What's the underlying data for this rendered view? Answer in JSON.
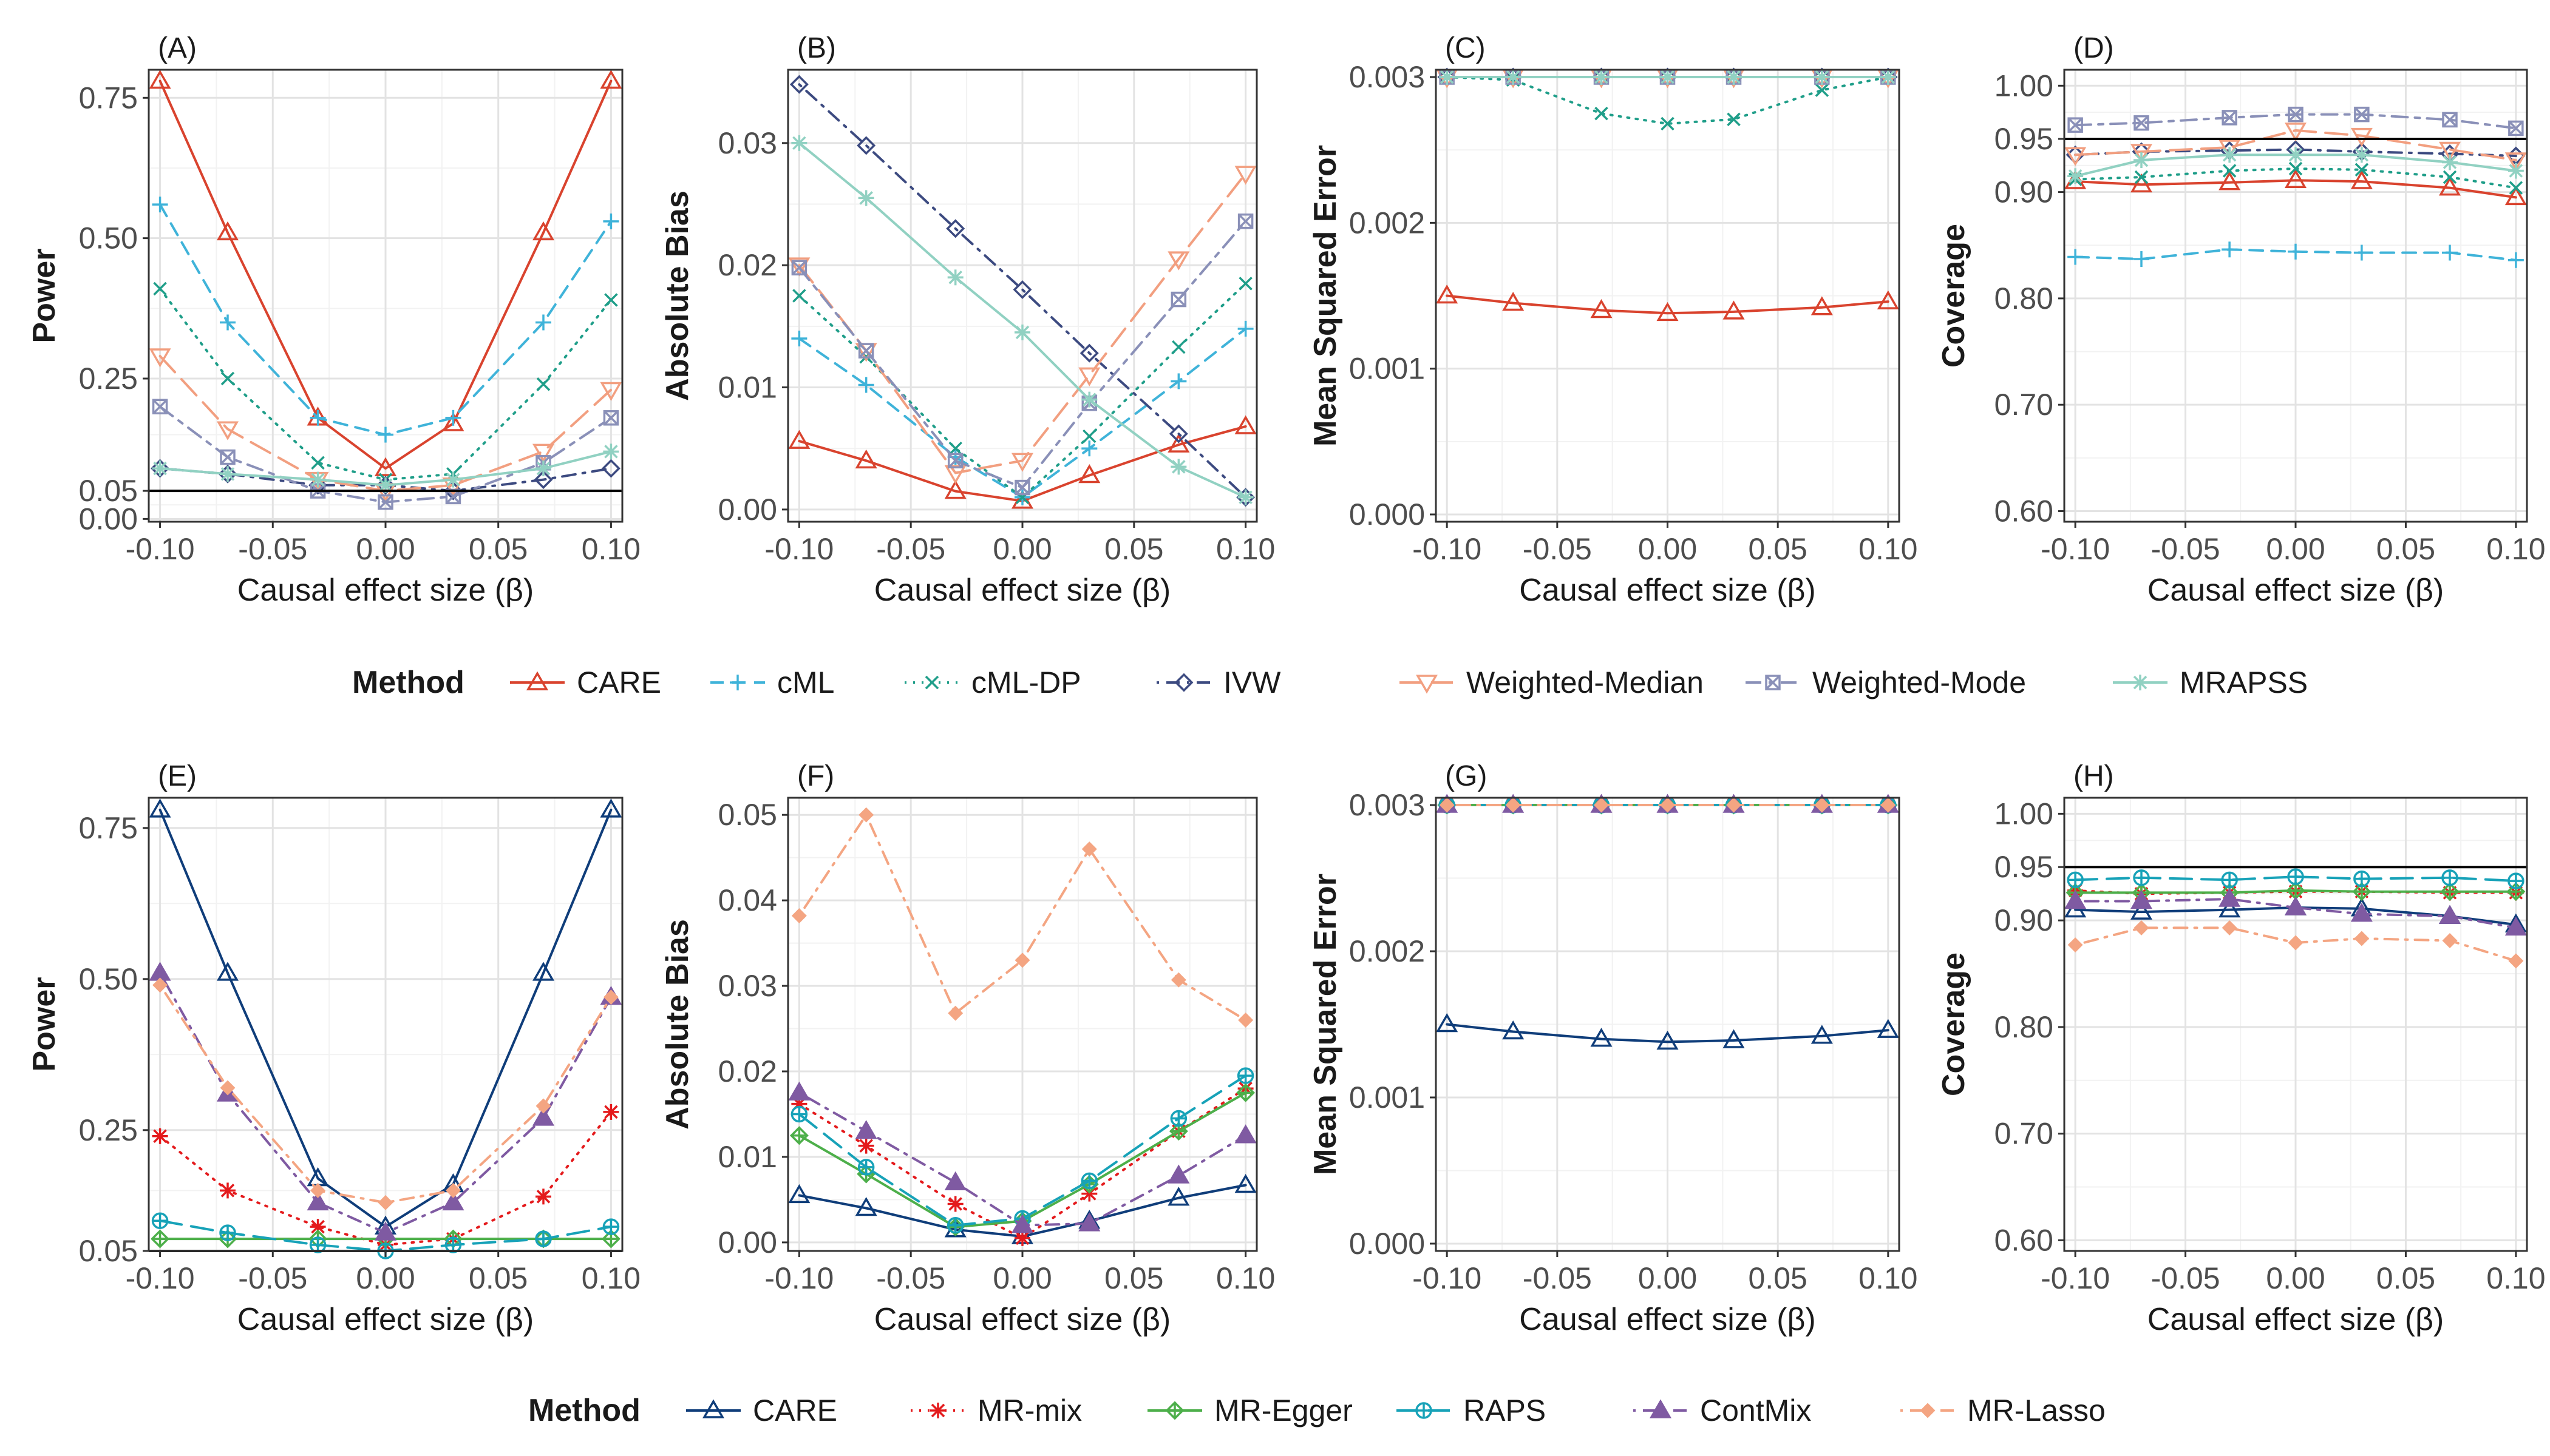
{
  "x_axis_ticks": [
    -0.1,
    -0.05,
    0.0,
    0.05,
    0.1
  ],
  "legends": [
    {
      "title": "Method",
      "items": [
        "CARE",
        "cML",
        "cML-DP",
        "IVW",
        "Weighted-Median",
        "Weighted-Mode",
        "MRAPSS"
      ]
    },
    {
      "title": "Method",
      "items": [
        "CARE",
        "MR-mix",
        "MR-Egger",
        "RAPS",
        "ContMix",
        "MR-Lasso"
      ]
    }
  ],
  "method_styles": {
    "CARE": {
      "color": "#d9432e",
      "shape": "triangle",
      "dash": "solid"
    },
    "cML": {
      "color": "#3fb3d9",
      "shape": "plus",
      "dash": "dashed"
    },
    "cML-DP": {
      "color": "#1f9e89",
      "shape": "x",
      "dash": "dotted"
    },
    "IVW": {
      "color": "#3c4a80",
      "shape": "diamond",
      "dash": "dotdash"
    },
    "Weighted-Median": {
      "color": "#f29f80",
      "shape": "tri-down",
      "dash": "longdash"
    },
    "Weighted-Mode": {
      "color": "#8a90b8",
      "shape": "square-x",
      "dash": "twodash"
    },
    "MRAPSS": {
      "color": "#91d1c2",
      "shape": "asterisk",
      "dash": "solid"
    },
    "CARE2": {
      "color": "#0f3d7a",
      "shape": "triangle",
      "dash": "solid"
    },
    "MR-mix": {
      "color": "#e41a1c",
      "shape": "asterisk",
      "dash": "dotted"
    },
    "MR-Egger": {
      "color": "#4daf4a",
      "shape": "diamond-plus",
      "dash": "solid"
    },
    "RAPS": {
      "color": "#17a2b8",
      "shape": "circle-plus",
      "dash": "longdash"
    },
    "ContMix": {
      "color": "#7f5aa2",
      "shape": "filled-triangle",
      "dash": "dotdash"
    },
    "MR-Lasso": {
      "color": "#f4a582",
      "shape": "filled-diamond",
      "dash": "dotdash"
    }
  },
  "chart_data": [
    {
      "type": "line",
      "panel": "(A)",
      "xlabel": "Causal effect size (β)",
      "ylabel": "Power",
      "x": [
        -0.1,
        -0.07,
        -0.03,
        0.0,
        0.03,
        0.07,
        0.1
      ],
      "ylim": [
        -0.005,
        0.8
      ],
      "yticks": [
        0.0,
        0.05,
        0.25,
        0.5,
        0.75
      ],
      "ytick_labels": [
        "0.00",
        "0.05",
        "0.25",
        "0.50",
        "0.75"
      ],
      "hline": 0.05,
      "series": [
        {
          "name": "CARE",
          "values": [
            0.78,
            0.51,
            0.18,
            0.09,
            0.17,
            0.51,
            0.78
          ]
        },
        {
          "name": "cML",
          "values": [
            0.56,
            0.35,
            0.18,
            0.15,
            0.18,
            0.35,
            0.53
          ]
        },
        {
          "name": "cML-DP",
          "values": [
            0.41,
            0.25,
            0.1,
            0.07,
            0.08,
            0.24,
            0.39
          ]
        },
        {
          "name": "IVW",
          "values": [
            0.09,
            0.08,
            0.06,
            0.06,
            0.05,
            0.07,
            0.09
          ]
        },
        {
          "name": "Weighted-Median",
          "values": [
            0.29,
            0.16,
            0.07,
            0.05,
            0.06,
            0.12,
            0.23
          ]
        },
        {
          "name": "Weighted-Mode",
          "values": [
            0.2,
            0.11,
            0.05,
            0.03,
            0.04,
            0.1,
            0.18
          ]
        },
        {
          "name": "MRAPSS",
          "values": [
            0.09,
            0.08,
            0.07,
            0.06,
            0.07,
            0.09,
            0.12
          ]
        }
      ]
    },
    {
      "type": "line",
      "panel": "(B)",
      "xlabel": "Causal effect size (β)",
      "ylabel": "Absolute Bias",
      "x": [
        -0.1,
        -0.07,
        -0.03,
        0.0,
        0.03,
        0.07,
        0.1
      ],
      "ylim": [
        -0.001,
        0.036
      ],
      "yticks": [
        0.0,
        0.01,
        0.02,
        0.03
      ],
      "ytick_labels": [
        "0.00",
        "0.01",
        "0.02",
        "0.03"
      ],
      "series": [
        {
          "name": "CARE",
          "values": [
            0.0056,
            0.004,
            0.0015,
            0.0007,
            0.0028,
            0.0053,
            0.0068
          ]
        },
        {
          "name": "cML",
          "values": [
            0.014,
            0.0102,
            0.0043,
            0.001,
            0.005,
            0.0105,
            0.0148
          ]
        },
        {
          "name": "cML-DP",
          "values": [
            0.0175,
            0.0125,
            0.005,
            0.001,
            0.006,
            0.0133,
            0.0185
          ]
        },
        {
          "name": "IVW",
          "values": [
            0.0348,
            0.0298,
            0.023,
            0.018,
            0.0128,
            0.0062,
            0.001
          ]
        },
        {
          "name": "Weighted-Median",
          "values": [
            0.02,
            0.013,
            0.003,
            0.004,
            0.011,
            0.0205,
            0.0275
          ]
        },
        {
          "name": "Weighted-Mode",
          "values": [
            0.0198,
            0.013,
            0.004,
            0.0018,
            0.0087,
            0.0172,
            0.0236
          ]
        },
        {
          "name": "MRAPSS",
          "values": [
            0.03,
            0.0255,
            0.019,
            0.0145,
            0.009,
            0.0035,
            0.001
          ]
        }
      ]
    },
    {
      "type": "line",
      "panel": "(C)",
      "xlabel": "Causal effect size (β)",
      "ylabel": "Mean Squared Error",
      "x": [
        -0.1,
        -0.07,
        -0.03,
        0.0,
        0.03,
        0.07,
        0.1
      ],
      "ylim": [
        -5e-05,
        0.00305
      ],
      "yticks": [
        0.0,
        0.001,
        0.002,
        0.003
      ],
      "ytick_labels": [
        "0.000",
        "0.001",
        "0.002",
        "0.003"
      ],
      "series": [
        {
          "name": "CARE",
          "values": [
            0.0015,
            0.00145,
            0.0014,
            0.00138,
            0.00139,
            0.00142,
            0.00146
          ]
        },
        {
          "name": "cML",
          "values": [
            0.003,
            0.003,
            0.003,
            0.003,
            0.003,
            0.003,
            0.003
          ]
        },
        {
          "name": "cML-DP",
          "values": [
            0.003,
            0.00298,
            0.00275,
            0.00268,
            0.00271,
            0.00291,
            0.003
          ]
        },
        {
          "name": "IVW",
          "values": [
            0.003,
            0.003,
            0.003,
            0.003,
            0.003,
            0.003,
            0.003
          ]
        },
        {
          "name": "Weighted-Median",
          "values": [
            0.003,
            0.003,
            0.003,
            0.003,
            0.003,
            0.003,
            0.003
          ]
        },
        {
          "name": "Weighted-Mode",
          "values": [
            0.003,
            0.003,
            0.003,
            0.003,
            0.003,
            0.003,
            0.003
          ]
        },
        {
          "name": "MRAPSS",
          "values": [
            0.003,
            0.003,
            0.003,
            0.003,
            0.003,
            0.003,
            0.003
          ]
        }
      ]
    },
    {
      "type": "line",
      "panel": "(D)",
      "xlabel": "Causal effect size (β)",
      "ylabel": "Coverage",
      "x": [
        -0.1,
        -0.07,
        -0.03,
        0.0,
        0.03,
        0.07,
        0.1
      ],
      "ylim": [
        0.59,
        1.015
      ],
      "yticks": [
        0.6,
        0.7,
        0.8,
        0.9,
        0.95,
        1.0
      ],
      "ytick_labels": [
        "0.60",
        "0.70",
        "0.80",
        "0.90",
        "0.95",
        "1.00"
      ],
      "hline": 0.95,
      "series": [
        {
          "name": "CARE",
          "values": [
            0.91,
            0.907,
            0.909,
            0.911,
            0.91,
            0.904,
            0.895
          ]
        },
        {
          "name": "cML",
          "values": [
            0.839,
            0.837,
            0.846,
            0.844,
            0.843,
            0.843,
            0.836
          ]
        },
        {
          "name": "cML-DP",
          "values": [
            0.912,
            0.914,
            0.92,
            0.922,
            0.921,
            0.914,
            0.904
          ]
        },
        {
          "name": "IVW",
          "values": [
            0.935,
            0.938,
            0.939,
            0.94,
            0.938,
            0.936,
            0.934
          ]
        },
        {
          "name": "Weighted-Median",
          "values": [
            0.935,
            0.938,
            0.942,
            0.958,
            0.953,
            0.94,
            0.93
          ]
        },
        {
          "name": "Weighted-Mode",
          "values": [
            0.963,
            0.965,
            0.97,
            0.973,
            0.973,
            0.968,
            0.96
          ]
        },
        {
          "name": "MRAPSS",
          "values": [
            0.915,
            0.93,
            0.935,
            0.935,
            0.935,
            0.928,
            0.92
          ]
        }
      ]
    },
    {
      "type": "line",
      "panel": "(E)",
      "xlabel": "Causal effect size (β)",
      "ylabel": "Power",
      "x": [
        -0.1,
        -0.07,
        -0.03,
        0.0,
        0.03,
        0.07,
        0.1
      ],
      "ylim": [
        0.05,
        0.8
      ],
      "yticks": [
        0.05,
        0.25,
        0.5,
        0.75
      ],
      "ytick_labels": [
        "0.05",
        "0.25",
        "0.50",
        "0.75"
      ],
      "hline": 0.05,
      "series": [
        {
          "name": "CARE",
          "values": [
            0.78,
            0.51,
            0.17,
            0.09,
            0.16,
            0.51,
            0.78
          ]
        },
        {
          "name": "MR-mix",
          "values": [
            0.24,
            0.15,
            0.09,
            0.06,
            0.07,
            0.14,
            0.28
          ]
        },
        {
          "name": "MR-Egger",
          "values": [
            0.07,
            0.07,
            0.07,
            0.07,
            0.07,
            0.07,
            0.07
          ]
        },
        {
          "name": "RAPS",
          "values": [
            0.1,
            0.08,
            0.06,
            0.05,
            0.06,
            0.07,
            0.09
          ]
        },
        {
          "name": "ContMix",
          "values": [
            0.51,
            0.31,
            0.13,
            0.08,
            0.13,
            0.27,
            0.47
          ]
        },
        {
          "name": "MR-Lasso",
          "values": [
            0.49,
            0.32,
            0.15,
            0.13,
            0.15,
            0.29,
            0.47
          ]
        }
      ]
    },
    {
      "type": "line",
      "panel": "(F)",
      "xlabel": "Causal effect size (β)",
      "ylabel": "Absolute Bias",
      "x": [
        -0.1,
        -0.07,
        -0.03,
        0.0,
        0.03,
        0.07,
        0.1
      ],
      "ylim": [
        -0.001,
        0.052
      ],
      "yticks": [
        0.0,
        0.01,
        0.02,
        0.03,
        0.04,
        0.05
      ],
      "ytick_labels": [
        "0.00",
        "0.01",
        "0.02",
        "0.03",
        "0.04",
        "0.05"
      ],
      "series": [
        {
          "name": "CARE",
          "values": [
            0.0055,
            0.004,
            0.0015,
            0.0007,
            0.0025,
            0.0052,
            0.0067
          ]
        },
        {
          "name": "MR-mix",
          "values": [
            0.0162,
            0.0113,
            0.0045,
            0.0005,
            0.0057,
            0.013,
            0.018
          ]
        },
        {
          "name": "MR-Egger",
          "values": [
            0.0125,
            0.008,
            0.0018,
            0.0025,
            0.0068,
            0.013,
            0.0175
          ]
        },
        {
          "name": "RAPS",
          "values": [
            0.015,
            0.0088,
            0.002,
            0.0028,
            0.0072,
            0.0145,
            0.0195
          ]
        },
        {
          "name": "ContMix",
          "values": [
            0.0175,
            0.013,
            0.007,
            0.002,
            0.0022,
            0.0078,
            0.0125
          ]
        },
        {
          "name": "MR-Lasso",
          "values": [
            0.0382,
            0.05,
            0.0268,
            0.033,
            0.046,
            0.0307,
            0.026
          ]
        }
      ]
    },
    {
      "type": "line",
      "panel": "(G)",
      "xlabel": "Causal effect size (β)",
      "ylabel": "Mean Squared Error",
      "x": [
        -0.1,
        -0.07,
        -0.03,
        0.0,
        0.03,
        0.07,
        0.1
      ],
      "ylim": [
        -5e-05,
        0.00305
      ],
      "yticks": [
        0.0,
        0.001,
        0.002,
        0.003
      ],
      "ytick_labels": [
        "0.000",
        "0.001",
        "0.002",
        "0.003"
      ],
      "series": [
        {
          "name": "CARE",
          "values": [
            0.0015,
            0.00145,
            0.0014,
            0.00138,
            0.00139,
            0.00142,
            0.00146
          ]
        },
        {
          "name": "MR-mix",
          "values": [
            0.003,
            0.003,
            0.003,
            0.003,
            0.003,
            0.003,
            0.003
          ]
        },
        {
          "name": "MR-Egger",
          "values": [
            0.003,
            0.003,
            0.003,
            0.003,
            0.003,
            0.003,
            0.003
          ]
        },
        {
          "name": "RAPS",
          "values": [
            0.003,
            0.003,
            0.003,
            0.003,
            0.003,
            0.003,
            0.003
          ]
        },
        {
          "name": "ContMix",
          "values": [
            0.003,
            0.003,
            0.003,
            0.003,
            0.003,
            0.003,
            0.003
          ]
        },
        {
          "name": "MR-Lasso",
          "values": [
            0.003,
            0.003,
            0.003,
            0.003,
            0.003,
            0.003,
            0.003
          ]
        }
      ]
    },
    {
      "type": "line",
      "panel": "(H)",
      "xlabel": "Causal effect size (β)",
      "ylabel": "Coverage",
      "x": [
        -0.1,
        -0.07,
        -0.03,
        0.0,
        0.03,
        0.07,
        0.1
      ],
      "ylim": [
        0.59,
        1.015
      ],
      "yticks": [
        0.6,
        0.7,
        0.8,
        0.9,
        0.95,
        1.0
      ],
      "ytick_labels": [
        "0.60",
        "0.70",
        "0.80",
        "0.90",
        "0.95",
        "1.00"
      ],
      "hline": 0.95,
      "series": [
        {
          "name": "CARE",
          "values": [
            0.91,
            0.908,
            0.91,
            0.912,
            0.911,
            0.904,
            0.896
          ]
        },
        {
          "name": "MR-mix",
          "values": [
            0.928,
            0.925,
            0.926,
            0.927,
            0.927,
            0.926,
            0.926
          ]
        },
        {
          "name": "MR-Egger",
          "values": [
            0.926,
            0.926,
            0.926,
            0.928,
            0.927,
            0.927,
            0.927
          ]
        },
        {
          "name": "RAPS",
          "values": [
            0.938,
            0.94,
            0.938,
            0.941,
            0.939,
            0.94,
            0.937
          ]
        },
        {
          "name": "ContMix",
          "values": [
            0.918,
            0.918,
            0.92,
            0.912,
            0.906,
            0.904,
            0.893
          ]
        },
        {
          "name": "MR-Lasso",
          "values": [
            0.877,
            0.893,
            0.893,
            0.879,
            0.883,
            0.881,
            0.862
          ]
        }
      ]
    }
  ]
}
